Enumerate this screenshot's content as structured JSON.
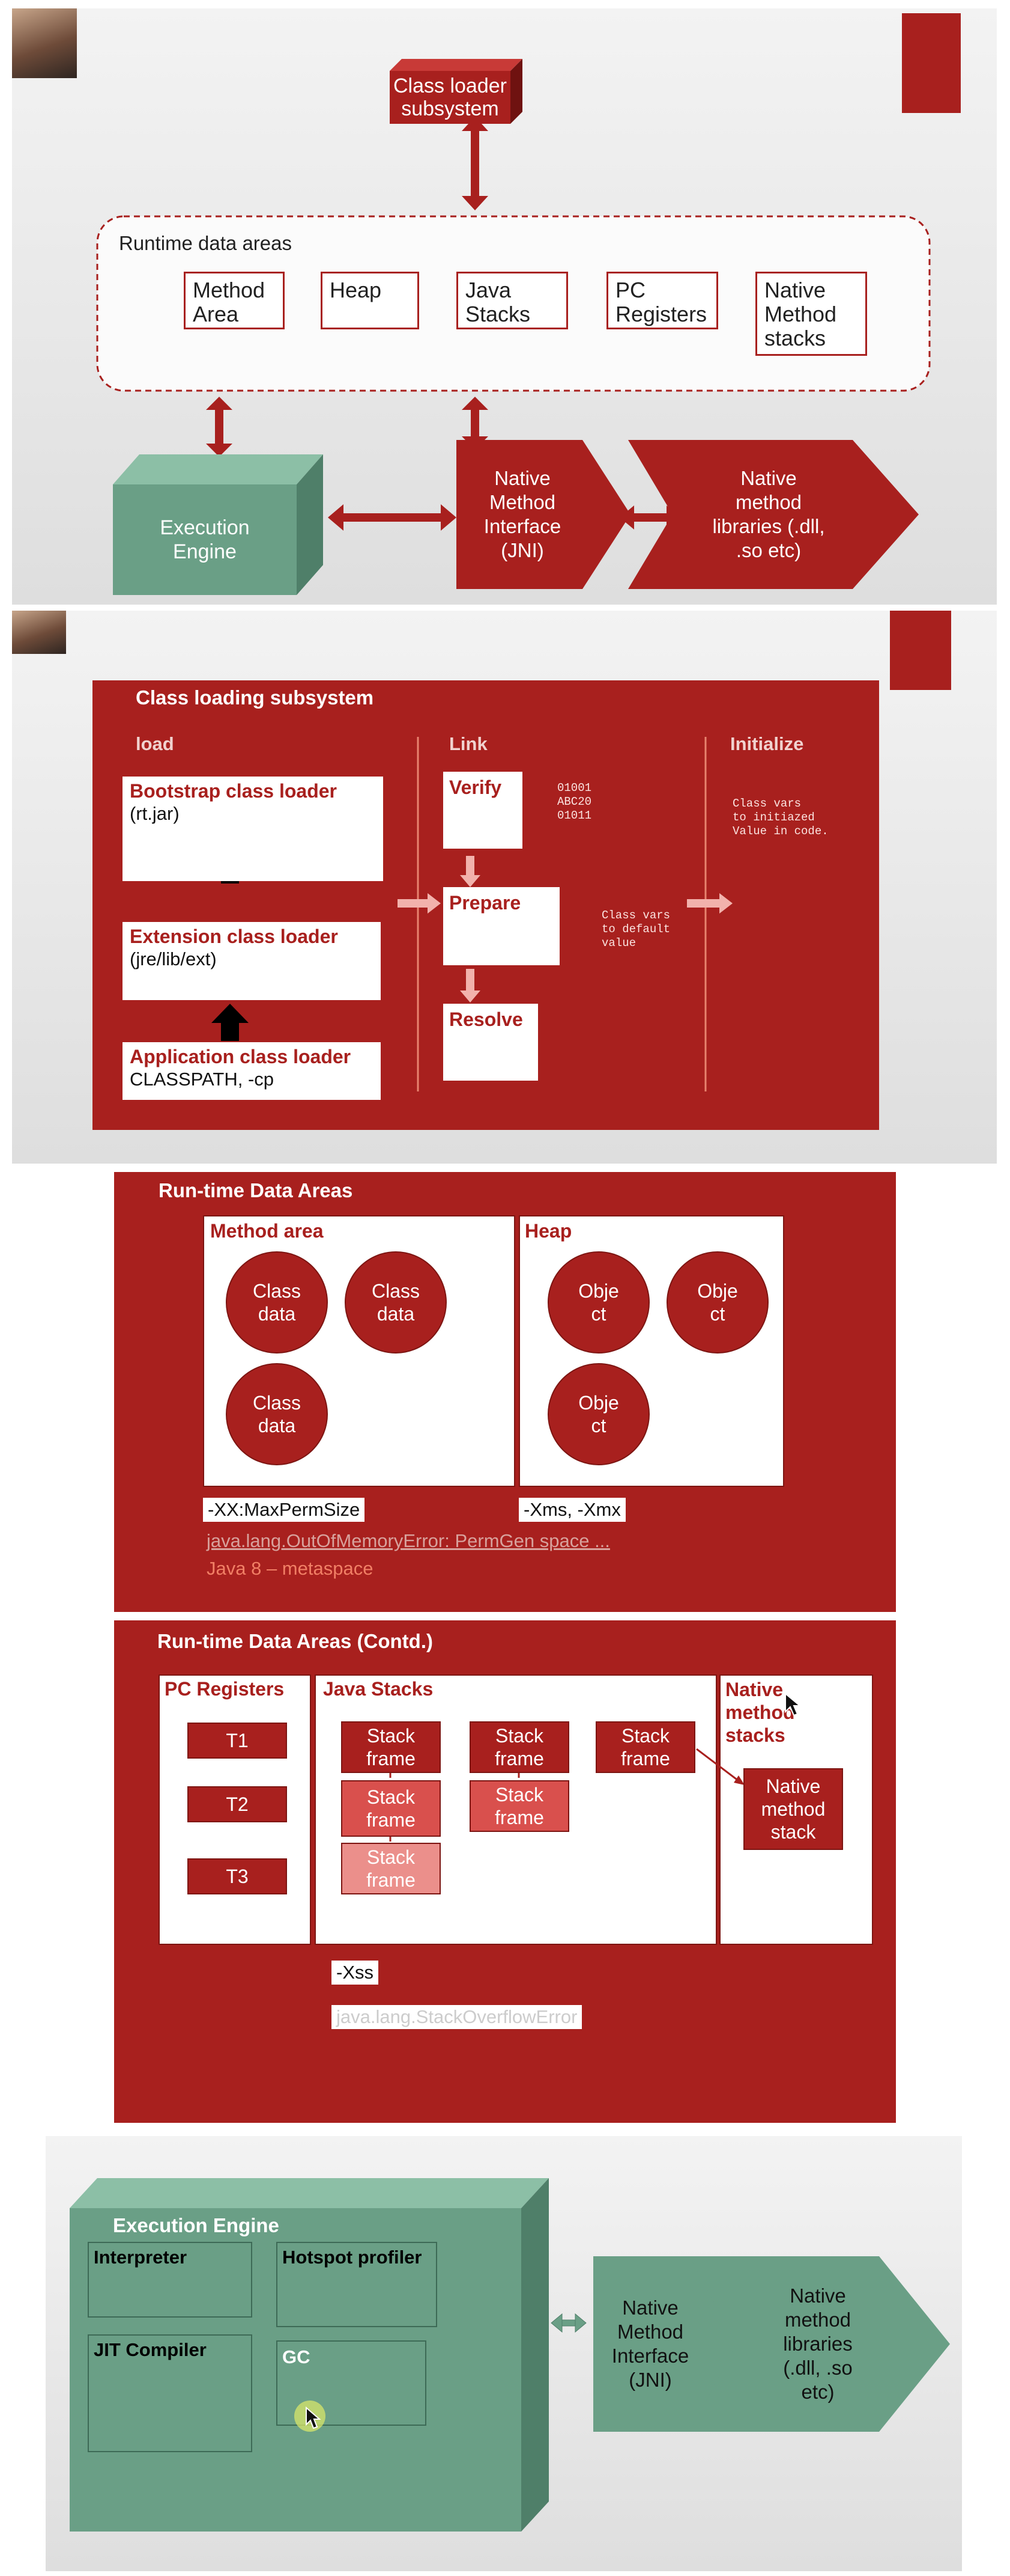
{
  "colors": {
    "brand_red": "#a8201e",
    "dark_red": "#7d1512",
    "teal": "#6a9f86",
    "teal_dark": "#4f7f69",
    "white": "#ffffff",
    "pink": "#e97e7a"
  },
  "slide1": {
    "class_loader": "Class loader\nsubsystem",
    "runtime_label": "Runtime data areas",
    "areas": [
      "Method\nArea",
      "Heap",
      "Java\nStacks",
      "PC\nRegisters",
      "Native\nMethod\nstacks"
    ],
    "execution_engine": "Execution\nEngine",
    "jni": "Native\nMethod\nInterface\n(JNI)",
    "native_libs": "Native\nmethod\nlibraries (.dll,\n.so etc)"
  },
  "slide2": {
    "title": "Class loading subsystem",
    "col_load": "load",
    "col_link": "Link",
    "col_init": "Initialize",
    "bootstrap_title": "Bootstrap class loader",
    "bootstrap_sub": "(rt.jar)",
    "extension_title": "Extension class loader",
    "extension_sub": "(jre/lib/ext)",
    "app_title": "Application class loader",
    "app_sub": "CLASSPATH, -cp",
    "verify": "Verify",
    "prepare": "Prepare",
    "resolve": "Resolve",
    "binary": "01001\nABC20\n01011",
    "prepare_note": "Class vars\nto default\nvalue",
    "init_note": "Class vars\nto initiazed\nValue in code."
  },
  "slide3": {
    "title": "Run-time Data Areas",
    "method_area": "Method area",
    "heap": "Heap",
    "class_data": [
      "Class\ndata",
      "Class\ndata",
      "Class\ndata"
    ],
    "objects": [
      "Obje\nct",
      "Obje\nct",
      "Obje\nct"
    ],
    "perm_flag": "-XX:MaxPermSize",
    "heap_flag": "-Xms, -Xmx",
    "oom_error": "java.lang.OutOfMemoryError: PermGen space ...",
    "java8_note": "Java 8 – metaspace"
  },
  "slide4": {
    "title": "Run-time Data Areas (Contd.)",
    "pc_registers": "PC Registers",
    "java_stacks": "Java Stacks",
    "native_stacks": "Native\nmethod\nstacks",
    "threads": [
      "T1",
      "T2",
      "T3"
    ],
    "stack_frame": "Stack\nframe",
    "native_method_stack": "Native\nmethod\nstack",
    "xss_flag": "-Xss",
    "so_error": "java.lang.StackOverflowError"
  },
  "slide5": {
    "title": "Execution Engine",
    "interpreter": "Interpreter",
    "hotspot": "Hotspot profiler",
    "jit": "JIT Compiler",
    "gc": "GC",
    "jni": "Native\nMethod\nInterface\n(JNI)",
    "native_libs": "Native\nmethod\nlibraries\n(.dll, .so\netc)"
  }
}
